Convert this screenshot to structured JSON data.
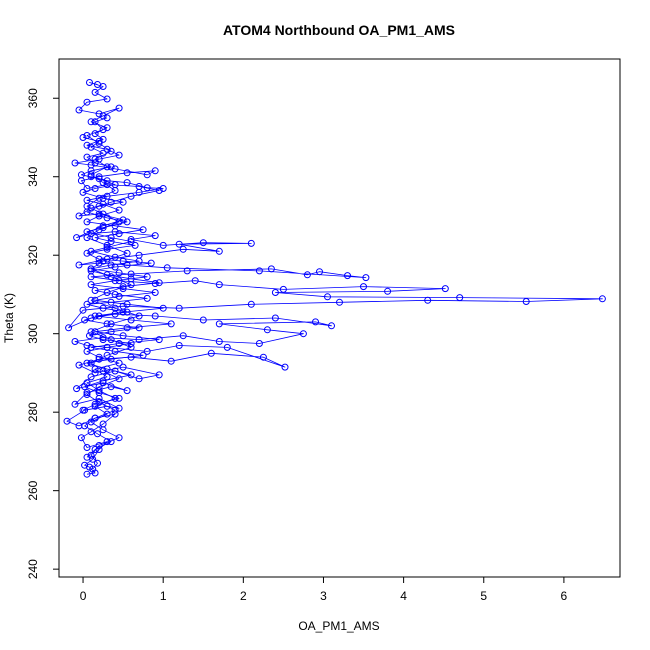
{
  "chart_data": {
    "type": "line",
    "title": "ATOM4 Northbound OA_PM1_AMS",
    "xlabel": "OA_PM1_AMS",
    "ylabel": "Theta (K)",
    "xlim": [
      -0.3,
      6.7
    ],
    "ylim": [
      238,
      370
    ],
    "x_ticks": [
      0,
      1,
      2,
      3,
      4,
      5,
      6
    ],
    "x_tick_labels": [
      "0",
      "1",
      "2",
      "3",
      "4",
      "5",
      "6"
    ],
    "y_ticks": [
      240,
      260,
      280,
      300,
      320,
      340,
      360
    ],
    "y_tick_labels": [
      "240",
      "260",
      "280",
      "300",
      "320",
      "340",
      "360"
    ],
    "color": "#0000ff",
    "series": [
      {
        "points": [
          [
            0.05,
            264.2
          ],
          [
            0.15,
            264.5
          ],
          [
            0.08,
            266.0
          ],
          [
            0.02,
            266.5
          ],
          [
            0.12,
            268.0
          ],
          [
            0.2,
            270.5
          ],
          [
            0.3,
            272.5
          ],
          [
            0.05,
            271.0
          ],
          [
            -0.02,
            273.5
          ],
          [
            0.1,
            275.0
          ],
          [
            0.25,
            277.0
          ],
          [
            0.4,
            279.5
          ],
          [
            0.15,
            278.5
          ],
          [
            -0.05,
            276.5
          ],
          [
            -0.2,
            277.7
          ],
          [
            0.02,
            280.5
          ],
          [
            0.3,
            281.5
          ],
          [
            0.45,
            281.0
          ],
          [
            0.2,
            283.5
          ],
          [
            -0.1,
            282.0
          ],
          [
            0.05,
            285.0
          ],
          [
            0.35,
            286.5
          ],
          [
            0.55,
            285.5
          ],
          [
            0.25,
            287.5
          ],
          [
            -0.08,
            286.0
          ],
          [
            0.1,
            289.0
          ],
          [
            0.4,
            290.5
          ],
          [
            0.7,
            288.5
          ],
          [
            0.95,
            289.5
          ],
          [
            0.5,
            291.5
          ],
          [
            0.15,
            290.0
          ],
          [
            -0.05,
            292.0
          ],
          [
            0.2,
            293.5
          ],
          [
            0.6,
            294.0
          ],
          [
            1.1,
            293.0
          ],
          [
            1.6,
            295.0
          ],
          [
            2.25,
            294.0
          ],
          [
            2.52,
            291.5
          ],
          [
            1.8,
            296.5
          ],
          [
            1.2,
            297.0
          ],
          [
            0.8,
            295.5
          ],
          [
            0.3,
            296.5
          ],
          [
            0.05,
            297.0
          ],
          [
            -0.1,
            298.0
          ],
          [
            0.25,
            299.0
          ],
          [
            0.7,
            298.5
          ],
          [
            1.25,
            299.5
          ],
          [
            1.7,
            298.0
          ],
          [
            2.2,
            297.5
          ],
          [
            2.75,
            300.0
          ],
          [
            2.3,
            301.0
          ],
          [
            1.7,
            302.5
          ],
          [
            2.9,
            303.0
          ],
          [
            3.1,
            302.0
          ],
          [
            2.4,
            304.0
          ],
          [
            1.5,
            303.5
          ],
          [
            0.9,
            304.5
          ],
          [
            0.4,
            305.0
          ],
          [
            0.1,
            304.0
          ],
          [
            -0.18,
            301.5
          ],
          [
            0.0,
            306.0
          ],
          [
            0.5,
            307.0
          ],
          [
            1.2,
            306.5
          ],
          [
            2.1,
            307.5
          ],
          [
            3.2,
            308.0
          ],
          [
            4.3,
            308.5
          ],
          [
            5.53,
            308.2
          ],
          [
            6.48,
            308.9
          ],
          [
            4.7,
            309.2
          ],
          [
            3.05,
            309.4
          ],
          [
            2.4,
            310.5
          ],
          [
            3.8,
            310.8
          ],
          [
            4.52,
            311.5
          ],
          [
            3.5,
            312.0
          ],
          [
            2.5,
            311.3
          ],
          [
            1.7,
            312.5
          ],
          [
            1.4,
            313.5
          ],
          [
            0.9,
            312.8
          ],
          [
            0.45,
            313.5
          ],
          [
            0.1,
            314.5
          ],
          [
            0.6,
            315.2
          ],
          [
            1.3,
            316.0
          ],
          [
            2.35,
            316.5
          ],
          [
            2.8,
            315.0
          ],
          [
            2.95,
            315.8
          ],
          [
            3.3,
            314.8
          ],
          [
            3.53,
            314.3
          ],
          [
            2.2,
            316.0
          ],
          [
            1.05,
            316.8
          ],
          [
            0.55,
            317.5
          ],
          [
            0.2,
            318.0
          ],
          [
            -0.05,
            317.5
          ],
          [
            0.3,
            319.0
          ],
          [
            0.7,
            320.0
          ],
          [
            1.25,
            321.5
          ],
          [
            1.7,
            321.0
          ],
          [
            1.2,
            322.8
          ],
          [
            2.1,
            323.0
          ],
          [
            1.5,
            323.2
          ],
          [
            1.0,
            322.5
          ],
          [
            0.6,
            324.0
          ],
          [
            0.9,
            325.0
          ],
          [
            0.4,
            326.0
          ],
          [
            0.1,
            325.5
          ],
          [
            -0.08,
            324.5
          ],
          [
            0.25,
            327.5
          ],
          [
            0.5,
            329.0
          ],
          [
            0.2,
            330.5
          ],
          [
            -0.05,
            330.0
          ],
          [
            0.1,
            332.0
          ],
          [
            0.35,
            333.5
          ],
          [
            0.6,
            335.0
          ],
          [
            0.95,
            336.5
          ],
          [
            0.7,
            337.5
          ],
          [
            0.3,
            338.0
          ],
          [
            0.05,
            337.0
          ],
          [
            -0.02,
            339.0
          ],
          [
            0.2,
            340.0
          ],
          [
            0.55,
            341.0
          ],
          [
            0.9,
            341.5
          ],
          [
            0.8,
            340.5
          ],
          [
            0.4,
            342.0
          ],
          [
            0.1,
            343.0
          ],
          [
            -0.1,
            343.5
          ],
          [
            0.2,
            344.5
          ],
          [
            0.45,
            345.5
          ],
          [
            0.3,
            347.0
          ],
          [
            0.05,
            348.0
          ],
          [
            0.25,
            349.5
          ],
          [
            0.15,
            351.0
          ],
          [
            0.3,
            352.5
          ],
          [
            0.1,
            354.0
          ],
          [
            0.25,
            355.5
          ],
          [
            0.45,
            357.5
          ],
          [
            0.2,
            356.0
          ],
          [
            -0.05,
            357.0
          ],
          [
            0.05,
            359.0
          ],
          [
            0.3,
            359.8
          ],
          [
            0.15,
            361.5
          ],
          [
            0.25,
            363.0
          ],
          [
            0.08,
            364.0
          ],
          [
            0.18,
            363.5
          ]
        ]
      },
      {
        "points": [
          [
            0.1,
            340.0
          ],
          [
            0.3,
            339.0
          ],
          [
            0.55,
            338.5
          ],
          [
            0.8,
            337.2
          ],
          [
            1.0,
            337.0
          ],
          [
            0.7,
            336.0
          ],
          [
            0.3,
            335.0
          ],
          [
            0.05,
            334.0
          ],
          [
            0.25,
            333.0
          ],
          [
            0.45,
            331.5
          ],
          [
            0.2,
            330.0
          ],
          [
            0.05,
            328.5
          ],
          [
            0.4,
            327.5
          ],
          [
            0.75,
            326.5
          ],
          [
            0.45,
            325.5
          ],
          [
            0.15,
            324.5
          ],
          [
            0.35,
            323.5
          ],
          [
            0.65,
            322.5
          ],
          [
            0.3,
            321.5
          ],
          [
            0.05,
            320.5
          ],
          [
            0.2,
            319.0
          ],
          [
            0.5,
            318.5
          ],
          [
            0.85,
            318.0
          ],
          [
            0.4,
            317.0
          ],
          [
            0.1,
            316.0
          ],
          [
            0.3,
            315.0
          ],
          [
            0.6,
            314.0
          ],
          [
            0.95,
            313.0
          ],
          [
            0.5,
            312.0
          ],
          [
            0.15,
            311.0
          ],
          [
            0.4,
            310.0
          ],
          [
            0.8,
            309.0
          ],
          [
            0.35,
            308.0
          ],
          [
            0.05,
            307.5
          ],
          [
            0.25,
            306.5
          ],
          [
            0.55,
            305.5
          ],
          [
            0.2,
            304.5
          ],
          [
            0.02,
            303.5
          ],
          [
            0.3,
            302.5
          ],
          [
            0.7,
            301.5
          ],
          [
            0.35,
            300.5
          ],
          [
            0.08,
            299.5
          ],
          [
            0.25,
            298.5
          ],
          [
            0.6,
            297.5
          ],
          [
            0.3,
            296.5
          ],
          [
            0.05,
            295.5
          ],
          [
            0.2,
            294.0
          ],
          [
            0.45,
            292.5
          ],
          [
            0.15,
            291.0
          ],
          [
            0.3,
            289.0
          ],
          [
            0.05,
            287.5
          ],
          [
            0.2,
            285.5
          ],
          [
            0.4,
            283.5
          ],
          [
            0.15,
            281.5
          ],
          [
            0.3,
            279.5
          ],
          [
            0.1,
            277.5
          ],
          [
            0.25,
            275.5
          ],
          [
            0.45,
            273.5
          ],
          [
            0.2,
            271.5
          ],
          [
            0.1,
            269.0
          ],
          [
            0.18,
            267.0
          ],
          [
            0.12,
            265.5
          ]
        ]
      },
      {
        "points": [
          [
            0.0,
            350.0
          ],
          [
            0.2,
            349.0
          ],
          [
            0.1,
            347.5
          ],
          [
            0.25,
            346.0
          ],
          [
            0.05,
            345.0
          ],
          [
            0.15,
            343.5
          ],
          [
            0.35,
            342.5
          ],
          [
            0.1,
            341.5
          ],
          [
            -0.02,
            340.5
          ],
          [
            0.2,
            339.5
          ],
          [
            0.4,
            338.0
          ],
          [
            0.15,
            337.0
          ],
          [
            0.0,
            336.0
          ],
          [
            0.25,
            334.5
          ],
          [
            0.5,
            333.5
          ],
          [
            0.2,
            332.5
          ],
          [
            0.05,
            331.0
          ],
          [
            0.3,
            329.5
          ],
          [
            0.55,
            328.5
          ],
          [
            0.25,
            327.0
          ],
          [
            0.05,
            326.0
          ],
          [
            0.35,
            324.5
          ],
          [
            0.6,
            323.5
          ],
          [
            0.3,
            322.0
          ],
          [
            0.1,
            321.0
          ],
          [
            0.4,
            319.5
          ],
          [
            0.7,
            318.5
          ],
          [
            0.35,
            317.5
          ],
          [
            0.1,
            316.5
          ],
          [
            0.45,
            315.5
          ],
          [
            0.8,
            314.5
          ],
          [
            0.4,
            313.5
          ],
          [
            0.1,
            312.5
          ],
          [
            0.5,
            311.5
          ],
          [
            0.9,
            310.5
          ],
          [
            0.45,
            309.5
          ],
          [
            0.15,
            308.5
          ],
          [
            0.55,
            307.5
          ],
          [
            1.0,
            306.5
          ],
          [
            0.5,
            305.5
          ],
          [
            0.15,
            304.5
          ],
          [
            0.6,
            303.5
          ],
          [
            1.1,
            302.5
          ],
          [
            0.55,
            301.5
          ],
          [
            0.15,
            300.5
          ],
          [
            0.5,
            299.5
          ],
          [
            0.95,
            298.5
          ],
          [
            0.45,
            297.5
          ],
          [
            0.1,
            296.5
          ],
          [
            0.4,
            295.5
          ],
          [
            0.75,
            294.5
          ],
          [
            0.35,
            293.5
          ],
          [
            0.05,
            292.5
          ],
          [
            0.3,
            291.0
          ],
          [
            0.6,
            289.5
          ],
          [
            0.25,
            288.0
          ],
          [
            0.02,
            286.5
          ],
          [
            0.2,
            285.0
          ],
          [
            0.45,
            283.5
          ],
          [
            0.15,
            282.0
          ],
          [
            0.0,
            280.5
          ]
        ]
      },
      {
        "points": [
          [
            0.3,
            355.0
          ],
          [
            0.15,
            354.0
          ],
          [
            0.25,
            352.0
          ],
          [
            0.05,
            350.5
          ],
          [
            0.2,
            348.5
          ],
          [
            0.35,
            346.5
          ],
          [
            0.15,
            344.5
          ],
          [
            0.3,
            342.5
          ],
          [
            0.1,
            340.5
          ],
          [
            0.25,
            338.5
          ],
          [
            0.4,
            336.5
          ],
          [
            0.2,
            334.5
          ],
          [
            0.05,
            332.5
          ],
          [
            0.25,
            330.5
          ],
          [
            0.45,
            328.5
          ],
          [
            0.2,
            326.5
          ],
          [
            0.05,
            324.5
          ],
          [
            0.3,
            322.5
          ],
          [
            0.55,
            320.5
          ],
          [
            0.25,
            318.5
          ],
          [
            0.1,
            316.5
          ],
          [
            0.35,
            314.5
          ],
          [
            0.6,
            312.5
          ],
          [
            0.3,
            310.5
          ],
          [
            0.1,
            308.5
          ],
          [
            0.4,
            306.5
          ],
          [
            0.7,
            304.5
          ],
          [
            0.35,
            302.5
          ],
          [
            0.1,
            300.5
          ],
          [
            0.35,
            298.5
          ],
          [
            0.6,
            296.5
          ],
          [
            0.3,
            294.5
          ],
          [
            0.1,
            292.5
          ],
          [
            0.25,
            290.5
          ],
          [
            0.45,
            288.5
          ],
          [
            0.2,
            286.5
          ],
          [
            0.05,
            284.5
          ],
          [
            0.2,
            282.5
          ],
          [
            0.4,
            280.5
          ],
          [
            0.15,
            278.5
          ],
          [
            0.02,
            276.5
          ],
          [
            0.18,
            274.5
          ],
          [
            0.35,
            272.5
          ],
          [
            0.15,
            270.5
          ],
          [
            0.05,
            268.5
          ]
        ]
      }
    ]
  }
}
